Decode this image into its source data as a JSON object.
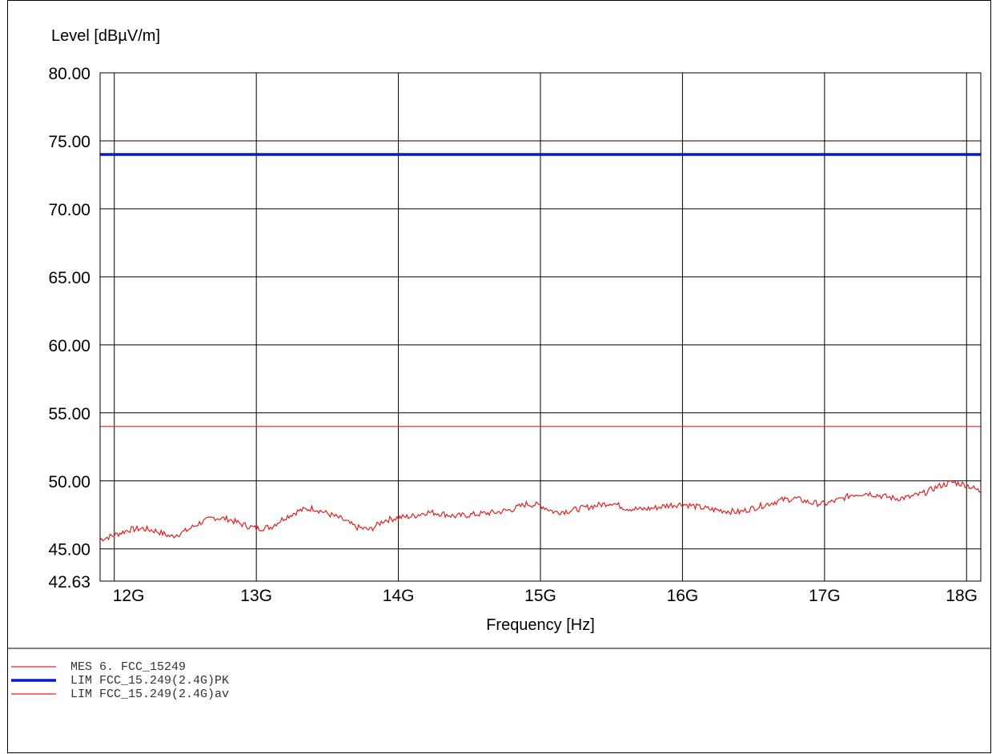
{
  "chart_data": {
    "type": "line",
    "ylabel": "Level [dBµV/m]",
    "xlabel": "Frequency [Hz]",
    "xlim": [
      11900000000,
      18100000000
    ],
    "ylim": [
      42.63,
      80.0
    ],
    "x_ticks": [
      12000000000,
      13000000000,
      14000000000,
      15000000000,
      16000000000,
      17000000000,
      18000000000
    ],
    "x_tick_labels": [
      "12G",
      "13G",
      "14G",
      "15G",
      "16G",
      "17G",
      "18G"
    ],
    "y_ticks": [
      42.63,
      45.0,
      50.0,
      55.0,
      60.0,
      65.0,
      70.0,
      75.0,
      80.0
    ],
    "y_tick_labels": [
      "42.63",
      "45.00",
      "50.00",
      "55.00",
      "60.00",
      "65.00",
      "70.00",
      "75.00",
      "80.00"
    ],
    "grid": true,
    "legend_position": "bottom-left",
    "series": [
      {
        "name": "MES 6. FCC_15249",
        "color": "#e02020",
        "style": "thin",
        "x": [
          11900000000,
          12000000000,
          12100000000,
          12200000000,
          12300000000,
          12400000000,
          12500000000,
          12600000000,
          12700000000,
          12800000000,
          12900000000,
          13000000000,
          13100000000,
          13200000000,
          13300000000,
          13400000000,
          13500000000,
          13600000000,
          13700000000,
          13800000000,
          13900000000,
          14000000000,
          14100000000,
          14200000000,
          14300000000,
          14400000000,
          14500000000,
          14600000000,
          14700000000,
          14800000000,
          14900000000,
          15000000000,
          15100000000,
          15200000000,
          15300000000,
          15400000000,
          15500000000,
          15600000000,
          15700000000,
          15800000000,
          15900000000,
          16000000000,
          16100000000,
          16200000000,
          16300000000,
          16400000000,
          16500000000,
          16600000000,
          16700000000,
          16800000000,
          16900000000,
          17000000000,
          17100000000,
          17200000000,
          17300000000,
          17400000000,
          17500000000,
          17600000000,
          17700000000,
          17800000000,
          17900000000,
          18000000000,
          18100000000
        ],
        "values": [
          45.7,
          46.0,
          46.4,
          46.5,
          46.3,
          45.9,
          46.3,
          46.9,
          47.3,
          47.2,
          46.8,
          46.5,
          46.6,
          47.3,
          47.8,
          48.0,
          47.6,
          47.2,
          46.6,
          46.4,
          47.1,
          47.3,
          47.4,
          47.7,
          47.6,
          47.4,
          47.5,
          47.6,
          47.7,
          47.9,
          48.3,
          48.2,
          47.7,
          47.8,
          48.0,
          48.2,
          48.4,
          48.0,
          47.9,
          48.0,
          48.2,
          48.3,
          48.1,
          47.9,
          47.8,
          47.7,
          48.0,
          48.3,
          48.6,
          48.7,
          48.4,
          48.3,
          48.6,
          49.0,
          49.1,
          48.9,
          48.7,
          48.8,
          49.1,
          49.6,
          49.9,
          49.7,
          49.2
        ]
      },
      {
        "name": "LIM FCC_15.249(2.4G)PK",
        "color": "#0018d0",
        "style": "thick",
        "x": [
          11900000000,
          18100000000
        ],
        "values": [
          74.0,
          74.0
        ]
      },
      {
        "name": "LIM FCC_15.249(2.4G)av",
        "color": "#e02020",
        "style": "thin",
        "x": [
          11900000000,
          18100000000
        ],
        "values": [
          54.0,
          54.0
        ]
      }
    ]
  }
}
